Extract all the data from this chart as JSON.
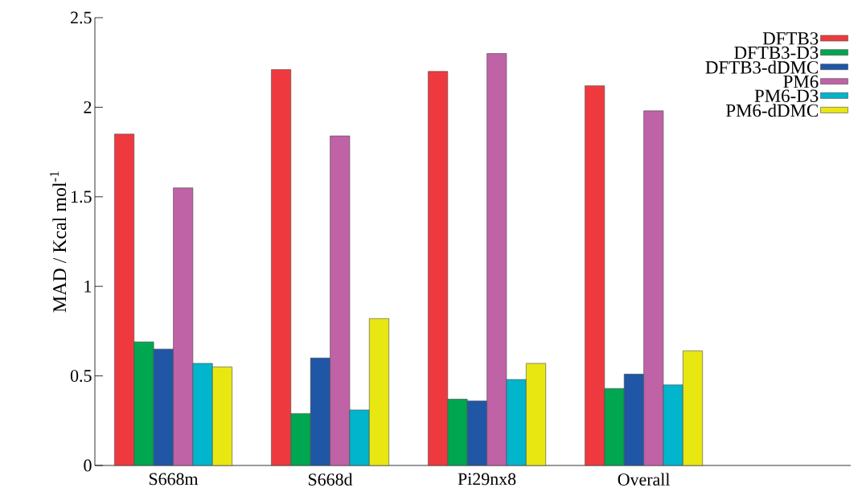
{
  "chart_data": {
    "type": "bar",
    "ylabel": "MAD / Kcal mol$^{-1}$",
    "categories": [
      "S668m",
      "S668d",
      "Pi29nx8",
      "Overall"
    ],
    "series": [
      {
        "name": "DFTB3",
        "color": "#ee3a3e",
        "values": [
          1.85,
          2.21,
          2.2,
          2.12
        ]
      },
      {
        "name": "DFTB3-D3",
        "color": "#00a650",
        "values": [
          0.69,
          0.29,
          0.37,
          0.43
        ]
      },
      {
        "name": "DFTB3-dDMC",
        "color": "#1f56a5",
        "values": [
          0.65,
          0.6,
          0.36,
          0.51
        ]
      },
      {
        "name": "PM6",
        "color": "#bf62a6",
        "values": [
          1.55,
          1.84,
          2.3,
          1.98
        ]
      },
      {
        "name": "PM6-D3",
        "color": "#00b5cc",
        "values": [
          0.57,
          0.31,
          0.48,
          0.45
        ]
      },
      {
        "name": "PM6-dDMC",
        "color": "#e8e712",
        "values": [
          0.55,
          0.82,
          0.57,
          0.64
        ]
      }
    ],
    "ylim": [
      0,
      2.5
    ],
    "yticks": [
      0,
      0.5,
      1,
      1.5,
      2,
      2.5
    ],
    "legend": "top right"
  }
}
